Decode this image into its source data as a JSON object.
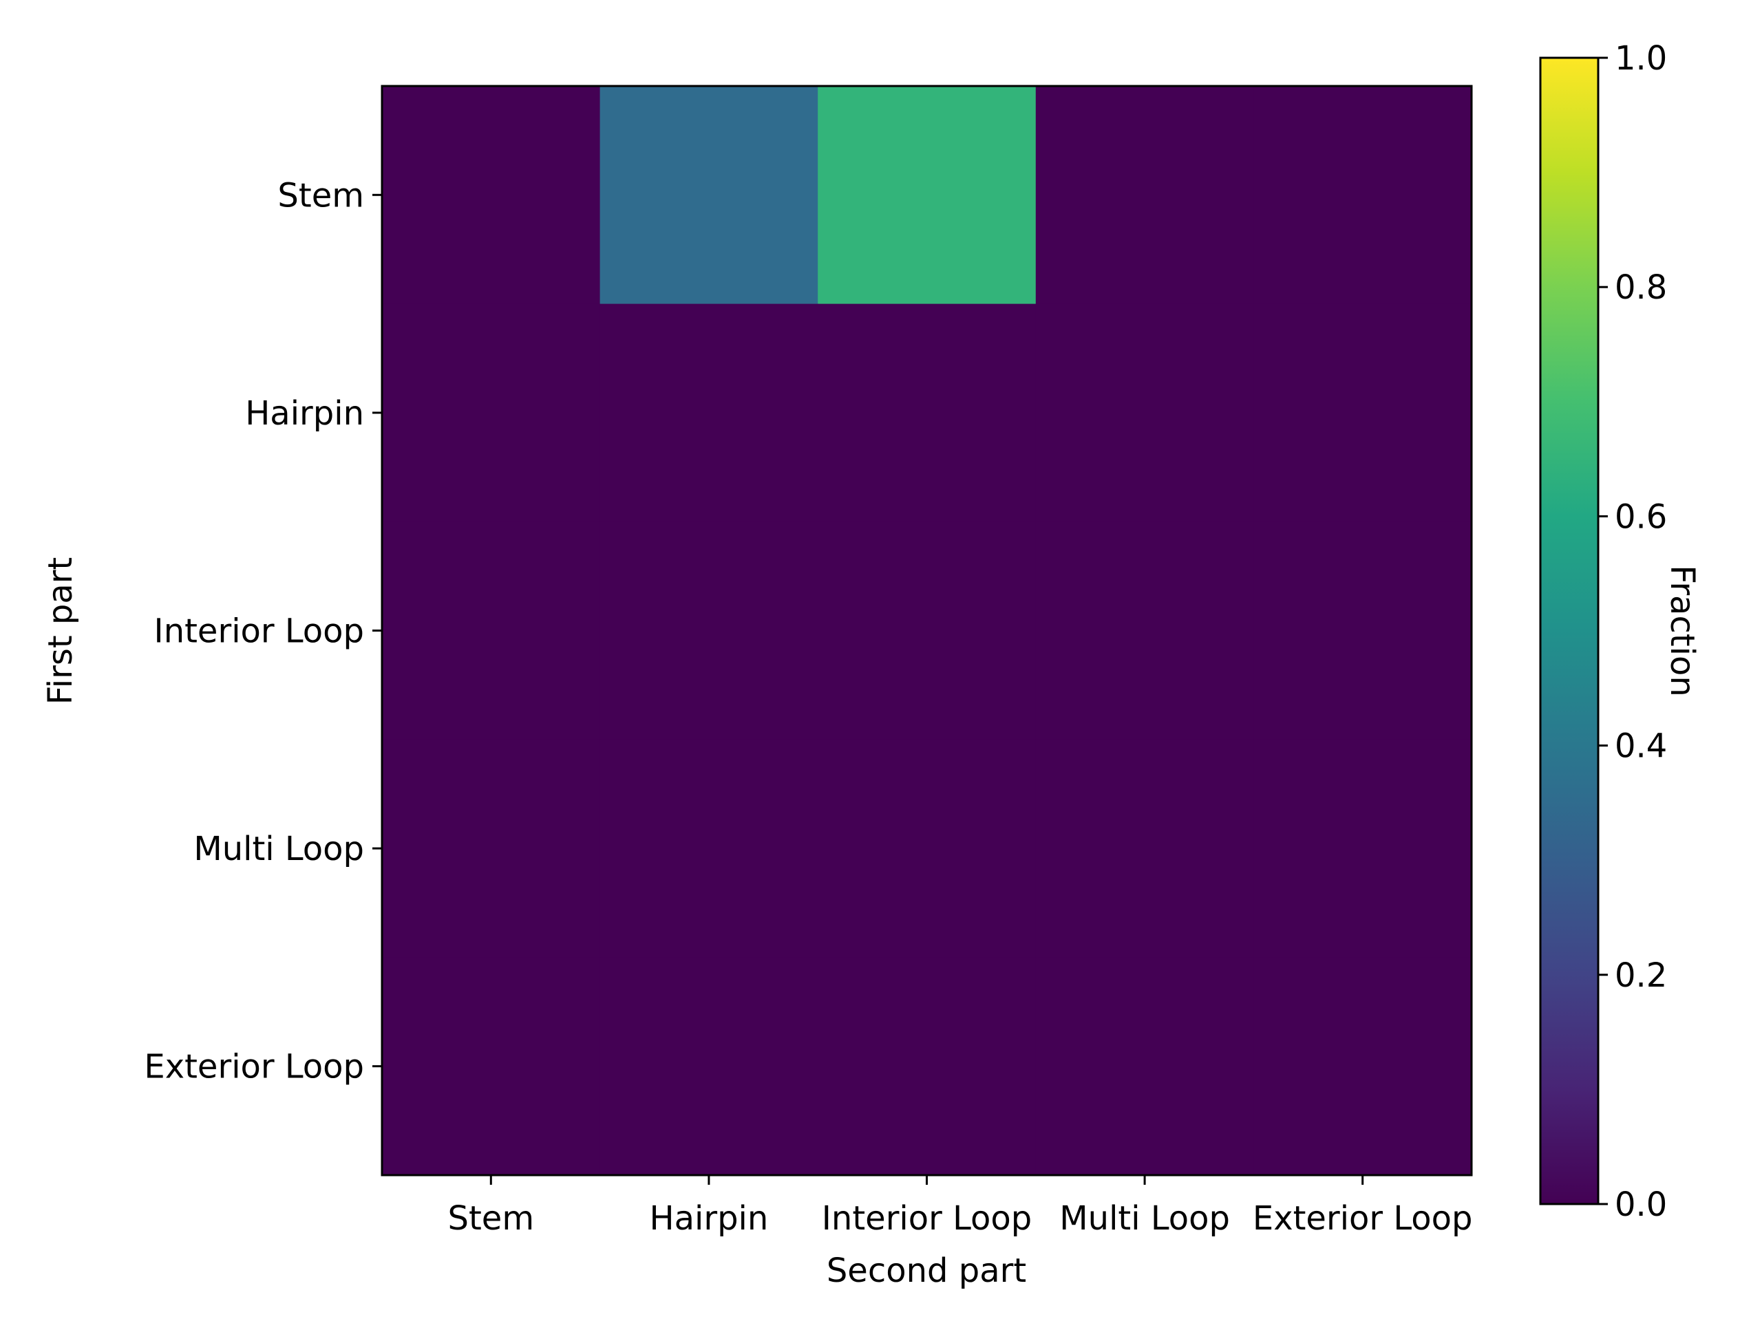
{
  "chart_data": {
    "type": "heatmap",
    "title": "",
    "xlabel": "Second part",
    "ylabel": "First part",
    "x_categories": [
      "Stem",
      "Hairpin",
      "Interior Loop",
      "Multi Loop",
      "Exterior Loop"
    ],
    "y_categories": [
      "Stem",
      "Hairpin",
      "Interior Loop",
      "Multi Loop",
      "Exterior Loop"
    ],
    "values": [
      [
        0.0,
        0.35,
        0.65,
        0.0,
        0.0
      ],
      [
        0.0,
        0.0,
        0.0,
        0.0,
        0.0
      ],
      [
        0.0,
        0.0,
        0.0,
        0.0,
        0.0
      ],
      [
        0.0,
        0.0,
        0.0,
        0.0,
        0.0
      ],
      [
        0.0,
        0.0,
        0.0,
        0.0,
        0.0
      ]
    ],
    "colorbar": {
      "label": "Fraction",
      "range": [
        0,
        1
      ],
      "ticks": [
        "0.0",
        "0.2",
        "0.4",
        "0.6",
        "0.8",
        "1.0"
      ],
      "colormap": "viridis"
    },
    "grid": false
  }
}
